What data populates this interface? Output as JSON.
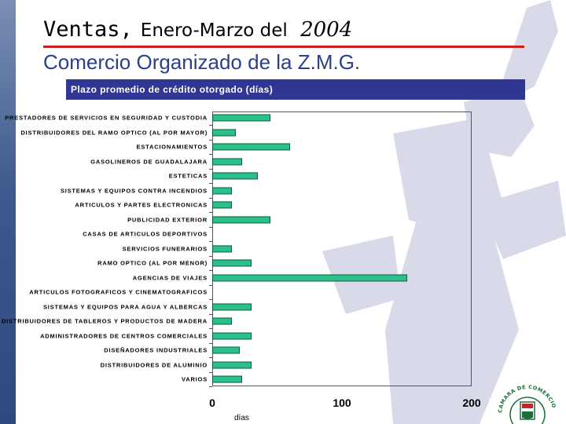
{
  "slide": {
    "title_part1": "Ventas,",
    "title_part2": "Enero-Marzo del",
    "title_part3": "2004",
    "subtitle": "Comercio Organizado de la Z.M.G."
  },
  "colors": {
    "bar_fill": "#2dbf8a",
    "header_bg": "#2f3693",
    "subtitle": "#2b3f8f",
    "rule": "#cc1f1f"
  },
  "logo": {
    "text": "CAMARA DE COMERCIO DE GUADALAJARA"
  },
  "chart_data": {
    "type": "bar",
    "orientation": "horizontal",
    "title": "Plazo promedio de crédito otorgado (días)",
    "xlabel": "días",
    "xlim": [
      0,
      200
    ],
    "xticks": [
      0,
      100,
      200
    ],
    "grid": false,
    "categories": [
      "PRESTADORES DE SERVICIOS EN SEGURIDAD Y CUSTODIA",
      "DISTRIBUIDORES DEL RAMO OPTICO (AL POR MAYOR)",
      "ESTACIONAMIENTOS",
      "GASOLINEROS DE GUADALAJARA",
      "ESTETICAS",
      "SISTEMAS Y EQUIPOS CONTRA INCENDIOS",
      "ARTICULOS Y PARTES ELECTRONICAS",
      "PUBLICIDAD EXTERIOR",
      "CASAS DE ARTICULOS DEPORTIVOS",
      "SERVICIOS FUNERARIOS",
      "RAMO OPTICO (AL POR MENOR)",
      "AGENCIAS DE VIAJES",
      "ARTICULOS FOTOGRAFICOS Y CINEMATOGRAFICOS",
      "SISTEMAS Y EQUIPOS PARA AGUA Y ALBERCAS",
      "DISTRIBUIDORES DE TABLEROS Y PRODUCTOS DE MADERA",
      "ADMINISTRADORES DE CENTROS COMERCIALES",
      "DISEÑADORES INDUSTRIALES",
      "DISTRIBUIDORES DE ALUMINIO",
      "VARIOS"
    ],
    "values": [
      45,
      18,
      60,
      23,
      35,
      15,
      15,
      45,
      0,
      15,
      30,
      150,
      0,
      30,
      15,
      30,
      21,
      30,
      23
    ]
  }
}
